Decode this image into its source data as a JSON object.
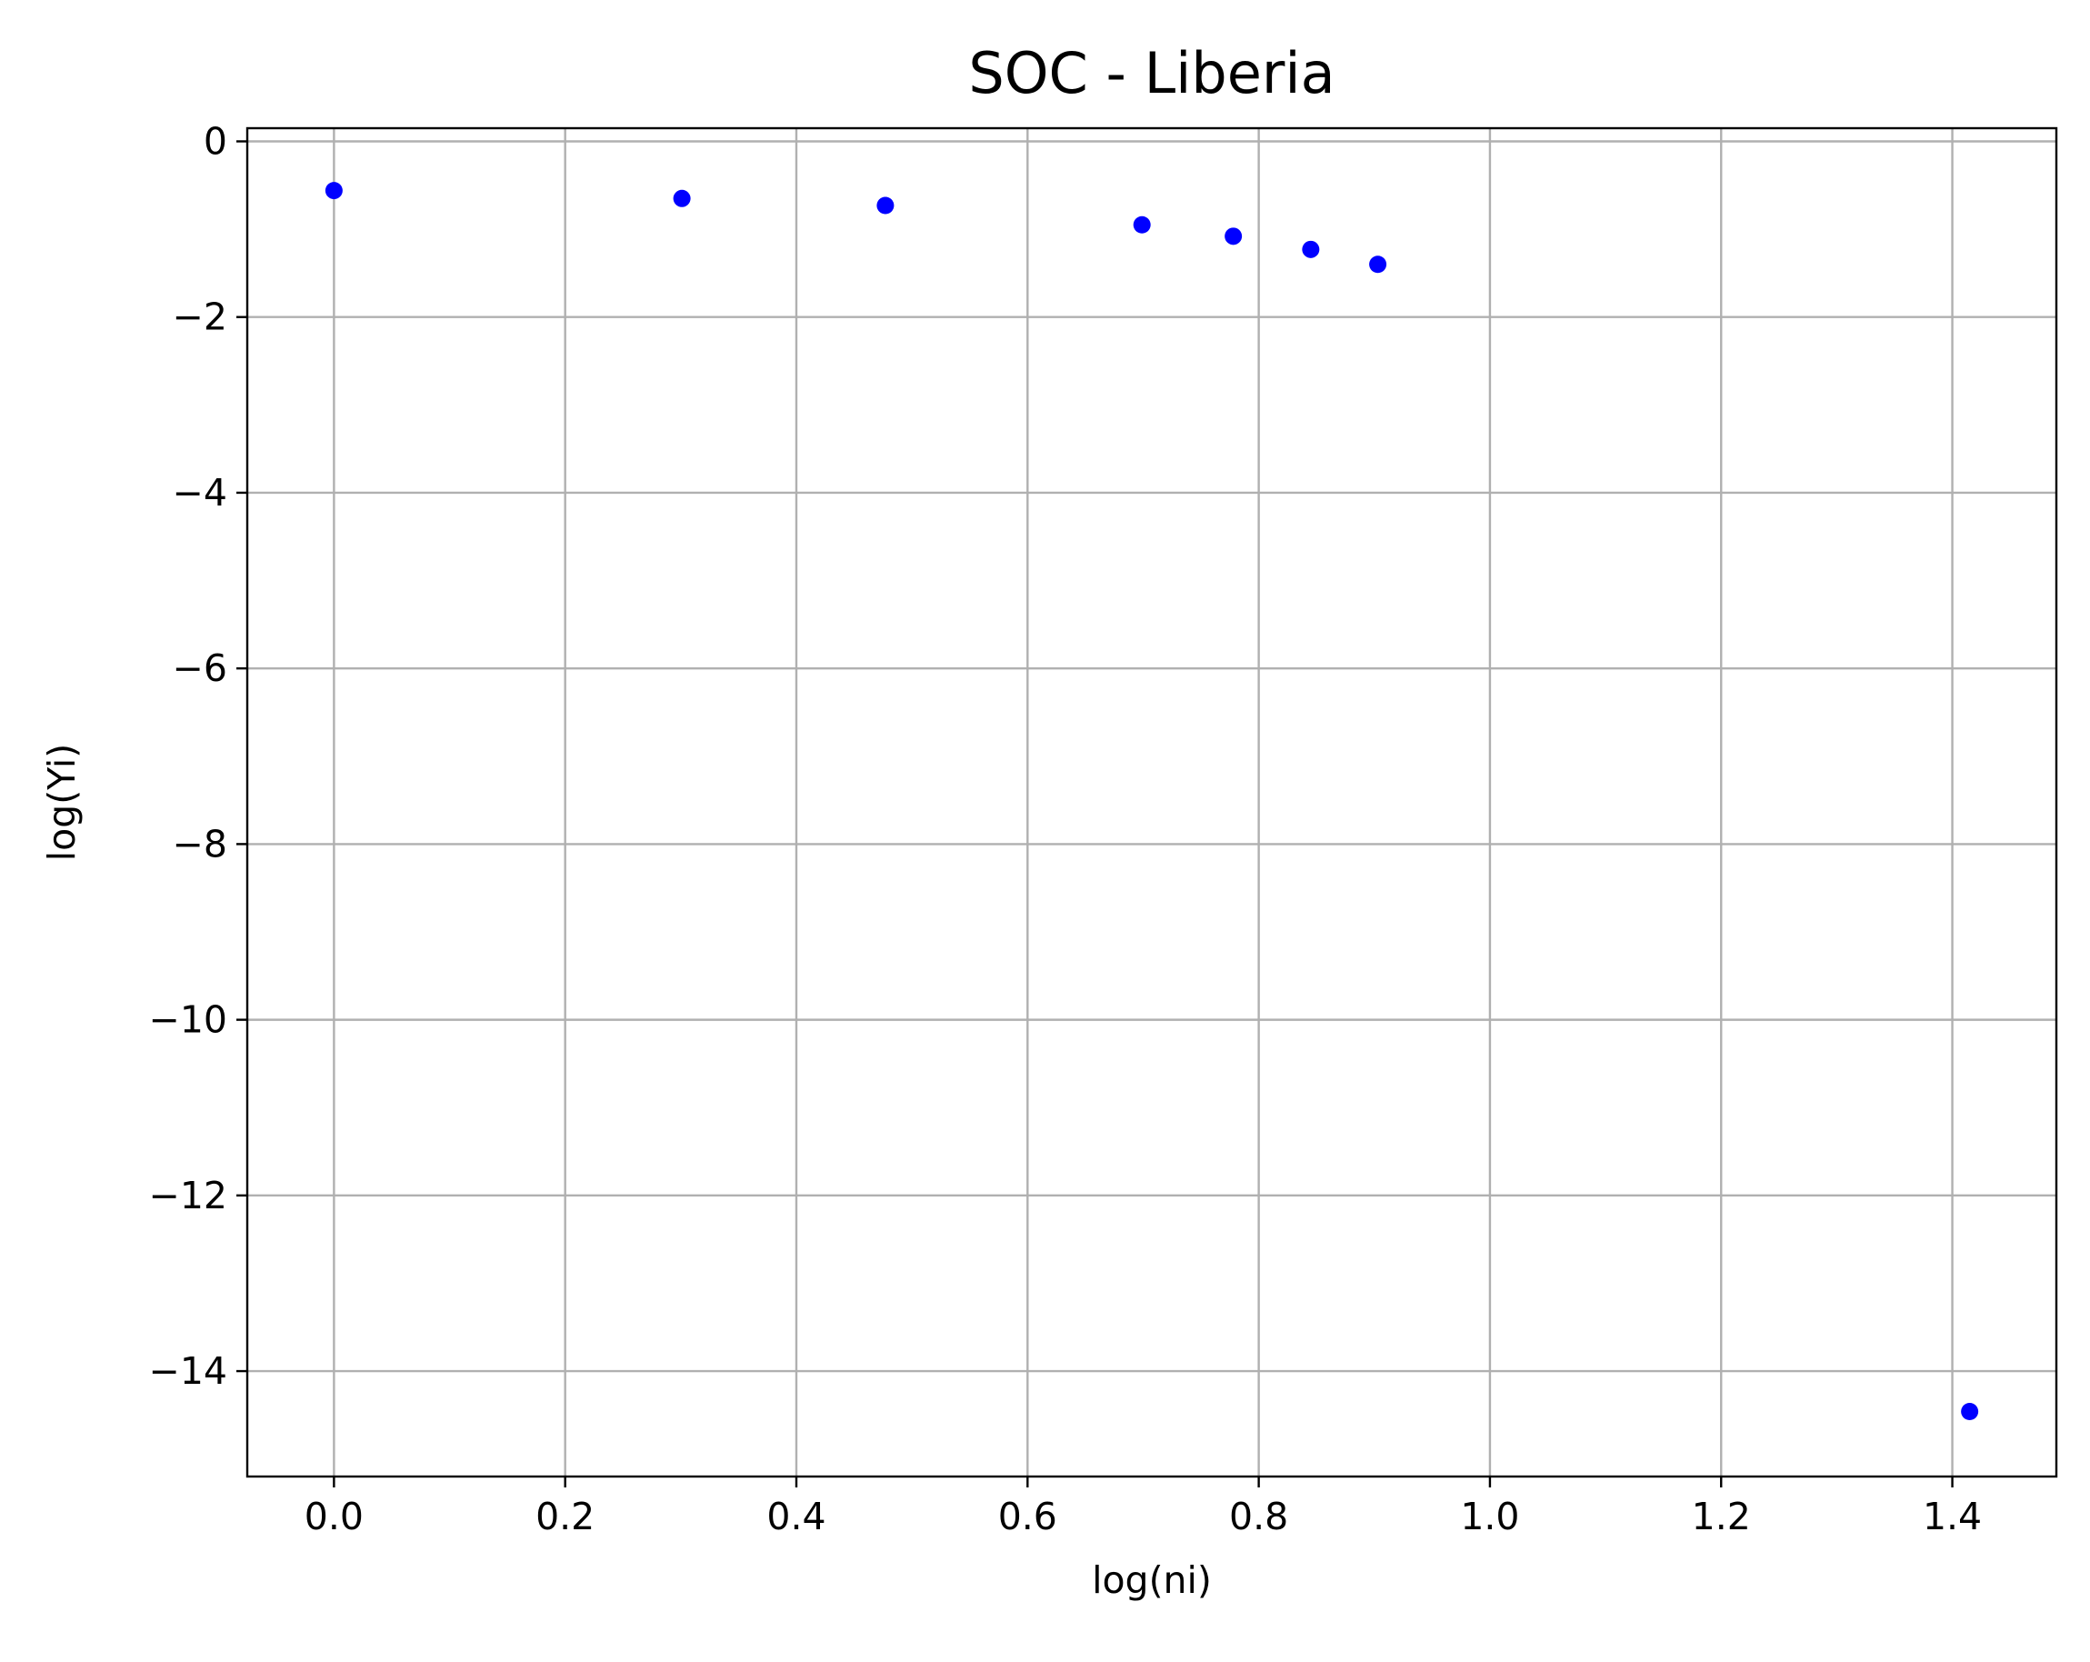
{
  "chart_data": {
    "type": "scatter",
    "title": "SOC - Liberia",
    "xlabel": "log(ni)",
    "ylabel": "log(Yi)",
    "xlim": [
      -0.075,
      1.49
    ],
    "ylim": [
      -15.2,
      0.15
    ],
    "xticks": [
      0.0,
      0.2,
      0.4,
      0.6,
      0.8,
      1.0,
      1.2,
      1.4
    ],
    "xtick_labels": [
      "0.0",
      "0.2",
      "0.4",
      "0.6",
      "0.8",
      "1.0",
      "1.2",
      "1.4"
    ],
    "yticks": [
      0,
      -2,
      -4,
      -6,
      -8,
      -10,
      -12,
      -14
    ],
    "ytick_labels": [
      "0",
      "−2",
      "−4",
      "−6",
      "−8",
      "−10",
      "−12",
      "−14"
    ],
    "grid": true,
    "legend": "none",
    "point_color": "#0000ff",
    "points": [
      {
        "x": 0.0,
        "y": -0.56
      },
      {
        "x": 0.301,
        "y": -0.65
      },
      {
        "x": 0.477,
        "y": -0.73
      },
      {
        "x": 0.699,
        "y": -0.95
      },
      {
        "x": 0.778,
        "y": -1.08
      },
      {
        "x": 0.845,
        "y": -1.23
      },
      {
        "x": 0.903,
        "y": -1.4
      },
      {
        "x": 1.415,
        "y": -14.46
      }
    ]
  }
}
